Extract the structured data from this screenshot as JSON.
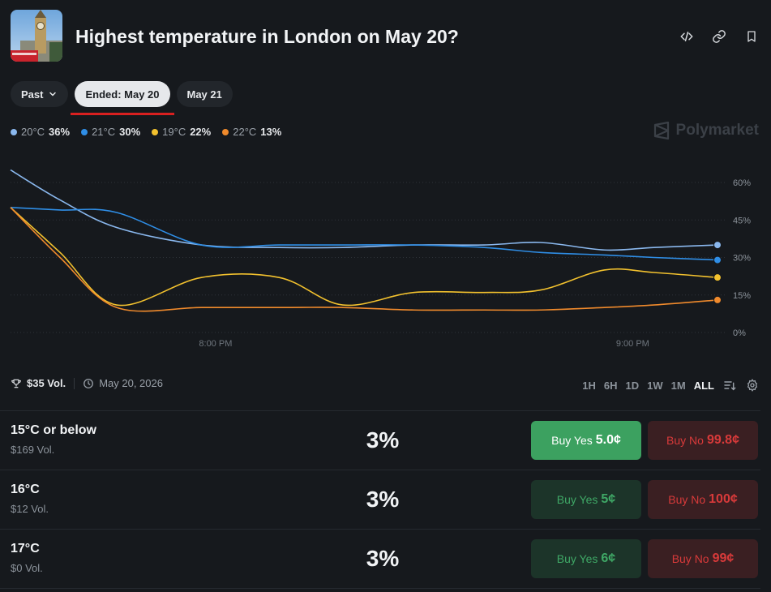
{
  "header": {
    "title": "Highest temperature in London on May 20?",
    "icons": [
      "code-icon",
      "link-icon",
      "bookmark-icon"
    ]
  },
  "tabs": [
    {
      "label": "Past",
      "dropdown": true,
      "active": false
    },
    {
      "label": "Ended: May 20",
      "active": true
    },
    {
      "label": "May 21",
      "active": false
    }
  ],
  "legend": [
    {
      "label": "20°C",
      "value": "36%",
      "color": "#8ab8ee"
    },
    {
      "label": "21°C",
      "value": "30%",
      "color": "#2f8ee6"
    },
    {
      "label": "19°C",
      "value": "22%",
      "color": "#f2c12e"
    },
    {
      "label": "22°C",
      "value": "13%",
      "color": "#f08a2c"
    }
  ],
  "brand": "Polymarket",
  "chart_data": {
    "type": "line",
    "x": [
      0,
      0.07,
      0.15,
      0.27,
      0.38,
      0.47,
      0.57,
      0.67,
      0.75,
      0.84,
      0.91,
      1.0
    ],
    "x_ticks": [
      "8:00 PM",
      "9:00 PM"
    ],
    "y_ticks": [
      "60%",
      "45%",
      "30%",
      "15%",
      "0%"
    ],
    "ylim": [
      0,
      60
    ],
    "series": [
      {
        "name": "20°C",
        "color": "#8ab8ee",
        "values": [
          65,
          53,
          42,
          35,
          34,
          34,
          35,
          35,
          36,
          33,
          34,
          35
        ]
      },
      {
        "name": "21°C",
        "color": "#2f8ee6",
        "values": [
          50,
          49,
          48,
          35,
          35,
          35,
          35,
          34,
          32,
          31,
          30,
          29
        ]
      },
      {
        "name": "19°C",
        "color": "#f2c12e",
        "values": [
          50,
          32,
          11,
          22,
          22,
          11,
          16,
          16,
          17,
          25,
          24,
          22
        ]
      },
      {
        "name": "22°C",
        "color": "#f08a2c",
        "values": [
          50,
          30,
          10,
          10,
          10,
          10,
          9,
          9,
          9,
          10,
          11,
          13
        ]
      }
    ]
  },
  "stats": {
    "volume": "$35 Vol.",
    "date": "May 20, 2026"
  },
  "ranges": [
    {
      "label": "1H",
      "active": false
    },
    {
      "label": "6H",
      "active": false
    },
    {
      "label": "1D",
      "active": false
    },
    {
      "label": "1W",
      "active": false
    },
    {
      "label": "1M",
      "active": false
    },
    {
      "label": "ALL",
      "active": true
    }
  ],
  "markets": [
    {
      "title": "15°C or below",
      "volume": "$169 Vol.",
      "chance": "3%",
      "yes_label": "Buy Yes",
      "yes_price": "5.0¢",
      "no_label": "Buy No",
      "no_price": "99.8¢",
      "yes_highlight": true
    },
    {
      "title": "16°C",
      "volume": "$12 Vol.",
      "chance": "3%",
      "yes_label": "Buy Yes",
      "yes_price": "5¢",
      "no_label": "Buy No",
      "no_price": "100¢",
      "yes_highlight": false
    },
    {
      "title": "17°C",
      "volume": "$0 Vol.",
      "chance": "3%",
      "yes_label": "Buy Yes",
      "yes_price": "6¢",
      "no_label": "Buy No",
      "no_price": "99¢",
      "yes_highlight": false
    }
  ]
}
